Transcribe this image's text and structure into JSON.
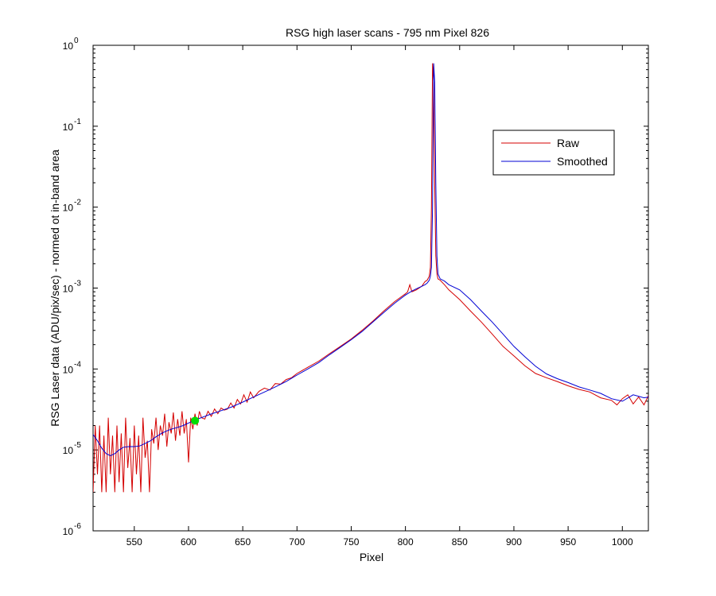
{
  "chart_data": {
    "type": "line",
    "title": "RSG high laser scans  - 795 nm    Pixel 826",
    "xlabel": "Pixel",
    "ylabel": "RSG Laser data (ADU/pix/sec) - normed ot in-band area",
    "x_ticks": [
      "550",
      "600",
      "650",
      "700",
      "750",
      "800",
      "850",
      "900",
      "950",
      "1000"
    ],
    "y_tick_exponents": [
      "0",
      "-1",
      "-2",
      "-3",
      "-4",
      "-5",
      "-6"
    ],
    "xlim": [
      512,
      1024
    ],
    "ylim": [
      1e-06,
      1
    ],
    "yscale": "log",
    "grid": false,
    "legend_position": "upper-right",
    "series": [
      {
        "name": "Raw",
        "color": "#d40000",
        "x": [
          512,
          514,
          516,
          518,
          520,
          522,
          524,
          526,
          528,
          530,
          532,
          534,
          536,
          538,
          540,
          542,
          544,
          546,
          548,
          550,
          552,
          554,
          556,
          558,
          560,
          562,
          564,
          566,
          568,
          570,
          572,
          574,
          576,
          578,
          580,
          582,
          584,
          586,
          588,
          590,
          592,
          594,
          596,
          598,
          600,
          602,
          604,
          606,
          608,
          610,
          612,
          615,
          618,
          621,
          624,
          627,
          630,
          633,
          636,
          639,
          642,
          645,
          648,
          651,
          654,
          657,
          660,
          665,
          670,
          675,
          680,
          685,
          690,
          695,
          700,
          710,
          720,
          730,
          740,
          750,
          760,
          770,
          780,
          790,
          800,
          802,
          804,
          806,
          810,
          815,
          818,
          820,
          822,
          823,
          824,
          825,
          826,
          827,
          828,
          829,
          830,
          832,
          836,
          840,
          850,
          860,
          870,
          880,
          890,
          900,
          910,
          920,
          930,
          940,
          950,
          960,
          970,
          980,
          990,
          995,
          1000,
          1005,
          1010,
          1015,
          1020,
          1024
        ],
        "values": [
          3e-06,
          2e-05,
          5e-06,
          2e-05,
          3e-06,
          1.5e-05,
          3e-06,
          2.5e-05,
          5e-06,
          1.5e-05,
          3e-06,
          2e-05,
          4e-06,
          1.6e-05,
          3e-06,
          2.5e-05,
          6e-06,
          1.4e-05,
          3e-06,
          2e-05,
          5e-06,
          1.5e-05,
          3e-06,
          2.5e-05,
          8e-06,
          1.3e-05,
          3e-06,
          1.8e-05,
          1.2e-05,
          2.5e-05,
          1e-05,
          2e-05,
          1.5e-05,
          2.8e-05,
          1.1e-05,
          2.2e-05,
          1.6e-05,
          2.9e-05,
          1.3e-05,
          2.4e-05,
          1.5e-05,
          3e-05,
          1.6e-05,
          2.4e-05,
          7e-06,
          2.5e-05,
          1.8e-05,
          2.8e-05,
          2e-05,
          3e-05,
          2.5e-05,
          2.4e-05,
          3e-05,
          2.6e-05,
          3.2e-05,
          2.8e-05,
          3.3e-05,
          3.1e-05,
          3.2e-05,
          3.8e-05,
          3.3e-05,
          4.2e-05,
          3.7e-05,
          4.8e-05,
          3.9e-05,
          5.2e-05,
          4.4e-05,
          5.3e-05,
          5.8e-05,
          5.5e-05,
          6.6e-05,
          6.5e-05,
          7.4e-05,
          7.8e-05,
          8.8e-05,
          0.000105,
          0.000125,
          0.000155,
          0.00019,
          0.000235,
          0.0003,
          0.00039,
          0.00052,
          0.00068,
          0.00085,
          0.0009,
          0.0011,
          0.0009,
          0.00095,
          0.00105,
          0.0012,
          0.00125,
          0.0014,
          0.0018,
          0.01,
          0.6,
          0.35,
          0.02,
          0.0025,
          0.0015,
          0.0013,
          0.00125,
          0.0011,
          0.00095,
          0.00072,
          0.00052,
          0.00038,
          0.00027,
          0.00019,
          0.000145,
          0.00011,
          8.8e-05,
          7.8e-05,
          7e-05,
          6.2e-05,
          5.6e-05,
          5.2e-05,
          4.4e-05,
          4.1e-05,
          3.6e-05,
          4.3e-05,
          4.8e-05,
          3.7e-05,
          4.5e-05,
          3.6e-05,
          4.7e-05
        ]
      },
      {
        "name": "Smoothed",
        "color": "#0000d4",
        "x": [
          512,
          516,
          520,
          524,
          528,
          532,
          536,
          540,
          545,
          550,
          555,
          560,
          565,
          570,
          575,
          580,
          585,
          590,
          595,
          600,
          605,
          610,
          620,
          630,
          640,
          650,
          660,
          670,
          680,
          690,
          700,
          710,
          720,
          730,
          740,
          750,
          760,
          770,
          780,
          790,
          800,
          806,
          810,
          815,
          818,
          820,
          822,
          823,
          824,
          825,
          826,
          827,
          828,
          829,
          830,
          832,
          836,
          840,
          850,
          860,
          870,
          880,
          890,
          900,
          910,
          920,
          930,
          940,
          950,
          960,
          970,
          980,
          990,
          1000,
          1010,
          1020,
          1024
        ],
        "values": [
          1.55e-05,
          1.3e-05,
          1.05e-05,
          9e-06,
          8.5e-06,
          9e-06,
          1e-05,
          1.08e-05,
          1.1e-05,
          1.1e-05,
          1.12e-05,
          1.2e-05,
          1.3e-05,
          1.45e-05,
          1.6e-05,
          1.72e-05,
          1.82e-05,
          1.9e-05,
          2e-05,
          2.15e-05,
          2.3e-05,
          2.45e-05,
          2.75e-05,
          3.05e-05,
          3.4e-05,
          3.9e-05,
          4.5e-05,
          5.2e-05,
          6e-05,
          7e-05,
          8.4e-05,
          0.0001,
          0.00012,
          0.00015,
          0.000185,
          0.00023,
          0.00029,
          0.00038,
          0.0005,
          0.00065,
          0.00082,
          0.00092,
          0.00098,
          0.00105,
          0.0011,
          0.00115,
          0.00125,
          0.0014,
          0.0018,
          0.01,
          0.6,
          0.35,
          0.02,
          0.0025,
          0.0015,
          0.0013,
          0.00122,
          0.0011,
          0.00095,
          0.00072,
          0.00052,
          0.00038,
          0.00027,
          0.00019,
          0.000142,
          0.000108,
          8.7e-05,
          7.6e-05,
          6.8e-05,
          6e-05,
          5.5e-05,
          5e-05,
          4.3e-05,
          4e-05,
          4.8e-05,
          4.4e-05,
          4.5e-05
        ]
      }
    ],
    "highlight_point": {
      "x": 606,
      "y": 2.3e-05,
      "color": "#00dd00"
    }
  }
}
